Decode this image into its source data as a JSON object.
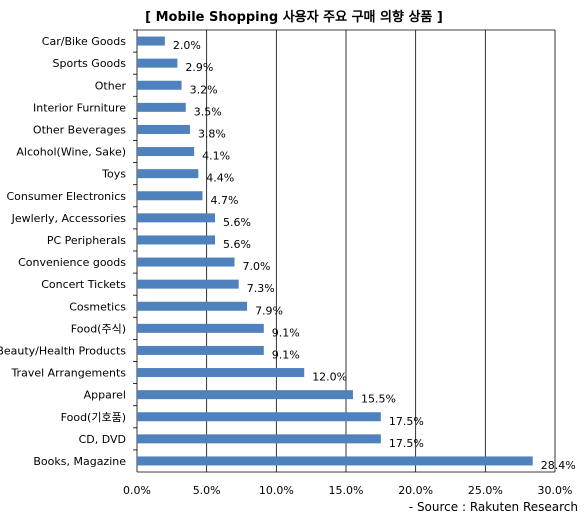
{
  "chart_data": {
    "type": "bar",
    "orientation": "horizontal",
    "title": "[ Mobile Shopping 사용자 주요 구매 의향 상품 ]",
    "categories": [
      "Car/Bike Goods",
      "Sports Goods",
      "Other",
      "Interior Furniture",
      "Other Beverages",
      "Alcohol(Wine, Sake)",
      "Toys",
      "Consumer Electronics",
      "Jewlerly, Accessories",
      "PC Peripherals",
      "Convenience goods",
      "Concert Tickets",
      "Cosmetics",
      "Food(주식)",
      "Beauty/Health Products",
      "Travel Arrangements",
      "Apparel",
      "Food(기호품)",
      "CD, DVD",
      "Books, Magazine"
    ],
    "values": [
      2.0,
      2.9,
      3.2,
      3.5,
      3.8,
      4.1,
      4.4,
      4.7,
      5.6,
      5.6,
      7.0,
      7.3,
      7.9,
      9.1,
      9.1,
      12.0,
      15.5,
      17.5,
      17.5,
      28.4
    ],
    "value_labels": [
      "2.0%",
      "2.9%",
      "3.2%",
      "3.5%",
      "3.8%",
      "4.1%",
      "4.4%",
      "4.7%",
      "5.6%",
      "5.6%",
      "7.0%",
      "7.3%",
      "7.9%",
      "9.1%",
      "9.1%",
      "12.0%",
      "15.5%",
      "17.5%",
      "17.5%",
      "28.4%"
    ],
    "x_ticks": [
      "0.0%",
      "5.0%",
      "10.0%",
      "15.0%",
      "20.0%",
      "25.0%",
      "30.0%"
    ],
    "xlim": [
      0,
      30
    ],
    "grid": true,
    "bar_color": "#4f81bd",
    "source": "- Source : Rakuten Research"
  }
}
